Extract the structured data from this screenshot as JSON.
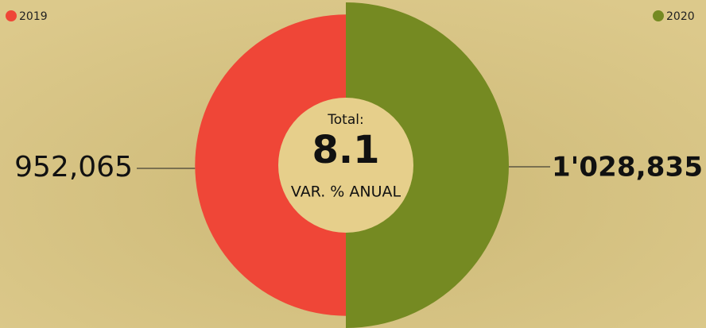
{
  "chart_data": {
    "type": "pie",
    "categories": [
      "2019",
      "2020"
    ],
    "values": [
      952065,
      1028835
    ],
    "value_labels": [
      "952,065",
      "1'028,835"
    ],
    "colors": [
      "#ef4637",
      "#758a22"
    ],
    "center_label": "Total:",
    "center_value": 8.1,
    "center_caption": "VAR. % ANUAL"
  }
}
